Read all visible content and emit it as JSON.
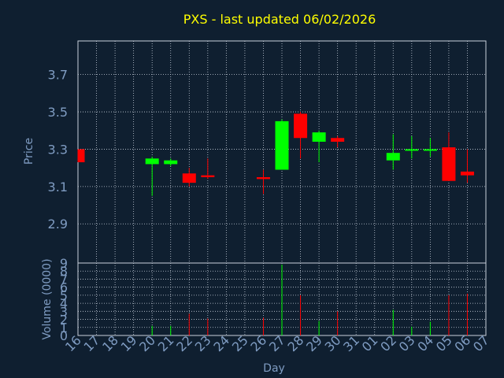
{
  "chart_data": {
    "type": "candlestick",
    "title": "PXS - last updated 06/02/2026",
    "xlabel": "Day",
    "x_ticks": [
      "16",
      "17",
      "18",
      "19",
      "20",
      "21",
      "22",
      "23",
      "24",
      "25",
      "26",
      "27",
      "28",
      "29",
      "30",
      "31",
      "01",
      "02",
      "03",
      "04",
      "05",
      "06",
      "07"
    ],
    "price": {
      "ylabel": "Price",
      "ylim": [
        2.69,
        3.88
      ],
      "y_ticks": [
        2.9,
        3.1,
        3.3,
        3.5,
        3.7
      ],
      "candles": [
        {
          "day": "16",
          "open": 3.3,
          "close": 3.23,
          "high": 3.3,
          "low": 3.23
        },
        {
          "day": "20",
          "open": 3.22,
          "close": 3.25,
          "high": 3.26,
          "low": 3.05
        },
        {
          "day": "21",
          "open": 3.22,
          "close": 3.24,
          "high": 3.25,
          "low": 3.21
        },
        {
          "day": "22",
          "open": 3.17,
          "close": 3.12,
          "high": 3.2,
          "low": 3.1
        },
        {
          "day": "23",
          "open": 3.16,
          "close": 3.15,
          "high": 3.25,
          "low": 3.14
        },
        {
          "day": "26",
          "open": 3.15,
          "close": 3.14,
          "high": 3.19,
          "low": 3.06
        },
        {
          "day": "27",
          "open": 3.19,
          "close": 3.45,
          "high": 3.46,
          "low": 3.19
        },
        {
          "day": "28",
          "open": 3.49,
          "close": 3.36,
          "high": 3.5,
          "low": 3.25
        },
        {
          "day": "29",
          "open": 3.34,
          "close": 3.39,
          "high": 3.4,
          "low": 3.23
        },
        {
          "day": "30",
          "open": 3.36,
          "close": 3.34,
          "high": 3.37,
          "low": 3.31
        },
        {
          "day": "02",
          "open": 3.24,
          "close": 3.28,
          "high": 3.38,
          "low": 3.19
        },
        {
          "day": "03",
          "open": 3.3,
          "close": 3.3,
          "high": 3.37,
          "low": 3.25
        },
        {
          "day": "04",
          "open": 3.3,
          "close": 3.3,
          "high": 3.36,
          "low": 3.26
        },
        {
          "day": "05",
          "open": 3.31,
          "close": 3.13,
          "high": 3.39,
          "low": 3.13
        },
        {
          "day": "06",
          "open": 3.18,
          "close": 3.16,
          "high": 3.3,
          "low": 3.12
        }
      ]
    },
    "volume": {
      "ylabel": "Volume (0000)",
      "ylim": [
        0,
        9
      ],
      "y_ticks": [
        0,
        1,
        2,
        3,
        4,
        5,
        6,
        7,
        8,
        9
      ],
      "bars": [
        {
          "day": "20",
          "value": 1.2,
          "direction": "up"
        },
        {
          "day": "21",
          "value": 1.2,
          "direction": "up"
        },
        {
          "day": "22",
          "value": 2.7,
          "direction": "down"
        },
        {
          "day": "23",
          "value": 2.1,
          "direction": "down"
        },
        {
          "day": "26",
          "value": 2.2,
          "direction": "down"
        },
        {
          "day": "27",
          "value": 8.8,
          "direction": "up"
        },
        {
          "day": "28",
          "value": 5.0,
          "direction": "down"
        },
        {
          "day": "29",
          "value": 1.8,
          "direction": "up"
        },
        {
          "day": "30",
          "value": 3.0,
          "direction": "down"
        },
        {
          "day": "02",
          "value": 3.2,
          "direction": "up"
        },
        {
          "day": "03",
          "value": 1.1,
          "direction": "up"
        },
        {
          "day": "04",
          "value": 1.7,
          "direction": "up"
        },
        {
          "day": "05",
          "value": 5.0,
          "direction": "down"
        },
        {
          "day": "06",
          "value": 5.2,
          "direction": "down"
        }
      ]
    },
    "grid": true,
    "colors": {
      "background": "#0f1f30",
      "title": "#ffff00",
      "axis_text": "#7f9cc2",
      "grid": "#c8d0dc",
      "up": "#00ff00",
      "down": "#ff0000"
    }
  }
}
